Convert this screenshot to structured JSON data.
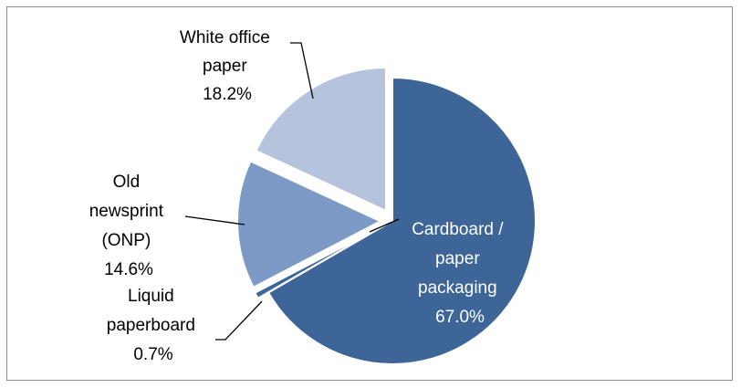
{
  "chart_data": {
    "type": "pie",
    "title": "",
    "start_angle_deg": 0,
    "direction": "clockwise",
    "slices": [
      {
        "label_lines": [
          "Cardboard /",
          "paper",
          "packaging"
        ],
        "value_label": "67.0%",
        "value": 67.0,
        "color": "#3d6597",
        "exploded": false
      },
      {
        "label_lines": [
          "Liquid",
          "paperboard"
        ],
        "value_label": "0.7%",
        "value": 0.7,
        "color": "#3d6597",
        "exploded": true
      },
      {
        "label_lines": [
          "Old",
          "newsprint",
          "(ONP)"
        ],
        "value_label": "14.6%",
        "value": 14.6,
        "color": "#7d9ac7",
        "exploded": true
      },
      {
        "label_lines": [
          "White office",
          "paper"
        ],
        "value_label": "18.2%",
        "value": 18.2,
        "color": "#b5c3dc",
        "exploded": true
      }
    ],
    "legend": "none"
  }
}
